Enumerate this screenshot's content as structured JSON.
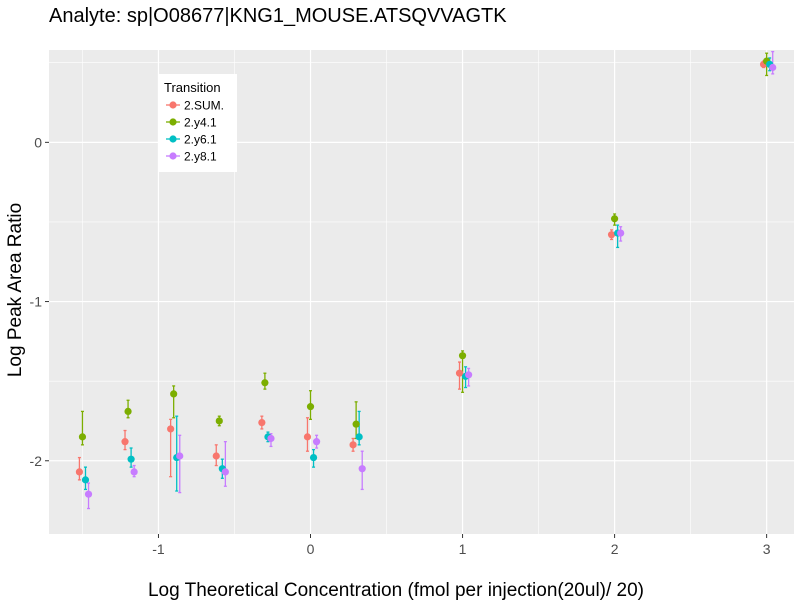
{
  "chart_data": {
    "type": "scatter",
    "title": "Analyte: sp|O08677|KNG1_MOUSE.ATSQVVAGTK",
    "xlabel": "Log Theoretical Concentration (fmol per injection(20ul)/ 20)",
    "ylabel": "Log Peak Area Ratio",
    "xlim": [
      -1.72,
      3.18
    ],
    "ylim": [
      -2.46,
      0.58
    ],
    "x_ticks": [
      -1,
      0,
      1,
      2,
      3
    ],
    "x_tick_labels": [
      "-1",
      "0",
      "1",
      "2",
      "3"
    ],
    "y_ticks": [
      0,
      -1,
      -2
    ],
    "y_tick_labels": [
      "0",
      "-1",
      "-2"
    ],
    "grid": true,
    "legend": {
      "title": "Transition",
      "position": "top-left",
      "entries": [
        "2.SUM.",
        "2.y4.1",
        "2.y6.1",
        "2.y8.1"
      ]
    },
    "series": [
      {
        "name": "2.SUM.",
        "color": "#F8766D",
        "points": [
          {
            "x": -1.52,
            "y": -2.07,
            "lo": -2.12,
            "hi": -1.98
          },
          {
            "x": -1.22,
            "y": -1.88,
            "lo": -1.93,
            "hi": -1.81
          },
          {
            "x": -0.92,
            "y": -1.8,
            "lo": -2.1,
            "hi": -1.74
          },
          {
            "x": -0.62,
            "y": -1.97,
            "lo": -2.03,
            "hi": -1.9
          },
          {
            "x": -0.32,
            "y": -1.76,
            "lo": -1.8,
            "hi": -1.72
          },
          {
            "x": -0.02,
            "y": -1.85,
            "lo": -1.94,
            "hi": -1.73
          },
          {
            "x": 0.28,
            "y": -1.9,
            "lo": -1.94,
            "hi": -1.86
          },
          {
            "x": 0.98,
            "y": -1.45,
            "lo": -1.55,
            "hi": -1.38
          },
          {
            "x": 1.98,
            "y": -0.58,
            "lo": -0.61,
            "hi": -0.55
          },
          {
            "x": 2.98,
            "y": 0.49,
            "lo": 0.47,
            "hi": 0.51
          }
        ]
      },
      {
        "name": "2.y4.1",
        "color": "#7CAE00",
        "points": [
          {
            "x": -1.5,
            "y": -1.85,
            "lo": -1.9,
            "hi": -1.69
          },
          {
            "x": -1.2,
            "y": -1.69,
            "lo": -1.73,
            "hi": -1.62
          },
          {
            "x": -0.9,
            "y": -1.58,
            "lo": -1.73,
            "hi": -1.53
          },
          {
            "x": -0.6,
            "y": -1.75,
            "lo": -1.78,
            "hi": -1.72
          },
          {
            "x": -0.3,
            "y": -1.51,
            "lo": -1.55,
            "hi": -1.45
          },
          {
            "x": 0.0,
            "y": -1.66,
            "lo": -1.74,
            "hi": -1.56
          },
          {
            "x": 0.3,
            "y": -1.77,
            "lo": -1.86,
            "hi": -1.63
          },
          {
            "x": 1.0,
            "y": -1.34,
            "lo": -1.57,
            "hi": -1.31
          },
          {
            "x": 2.0,
            "y": -0.48,
            "lo": -0.52,
            "hi": -0.45
          },
          {
            "x": 3.0,
            "y": 0.51,
            "lo": 0.42,
            "hi": 0.56
          }
        ]
      },
      {
        "name": "2.y6.1",
        "color": "#00BFC4",
        "points": [
          {
            "x": -1.48,
            "y": -2.12,
            "lo": -2.18,
            "hi": -2.04
          },
          {
            "x": -1.18,
            "y": -1.99,
            "lo": -2.04,
            "hi": -1.92
          },
          {
            "x": -0.88,
            "y": -1.98,
            "lo": -2.19,
            "hi": -1.72
          },
          {
            "x": -0.58,
            "y": -2.05,
            "lo": -2.11,
            "hi": -1.99
          },
          {
            "x": -0.28,
            "y": -1.85,
            "lo": -1.88,
            "hi": -1.82
          },
          {
            "x": 0.02,
            "y": -1.98,
            "lo": -2.04,
            "hi": -1.93
          },
          {
            "x": 0.32,
            "y": -1.85,
            "lo": -1.9,
            "hi": -1.69
          },
          {
            "x": 1.02,
            "y": -1.47,
            "lo": -1.54,
            "hi": -1.41
          },
          {
            "x": 2.02,
            "y": -0.57,
            "lo": -0.66,
            "hi": -0.52
          },
          {
            "x": 3.02,
            "y": 0.49,
            "lo": 0.45,
            "hi": 0.53
          }
        ]
      },
      {
        "name": "2.y8.1",
        "color": "#C77CFF",
        "points": [
          {
            "x": -1.46,
            "y": -2.21,
            "lo": -2.3,
            "hi": -2.14
          },
          {
            "x": -1.16,
            "y": -2.07,
            "lo": -2.1,
            "hi": -2.03
          },
          {
            "x": -0.86,
            "y": -1.97,
            "lo": -2.2,
            "hi": -1.84
          },
          {
            "x": -0.56,
            "y": -2.07,
            "lo": -2.16,
            "hi": -1.88
          },
          {
            "x": -0.26,
            "y": -1.86,
            "lo": -1.91,
            "hi": -1.83
          },
          {
            "x": 0.04,
            "y": -1.88,
            "lo": -1.92,
            "hi": -1.84
          },
          {
            "x": 0.34,
            "y": -2.05,
            "lo": -2.18,
            "hi": -1.94
          },
          {
            "x": 1.04,
            "y": -1.46,
            "lo": -1.53,
            "hi": -1.42
          },
          {
            "x": 2.04,
            "y": -0.57,
            "lo": -0.62,
            "hi": -0.53
          },
          {
            "x": 3.04,
            "y": 0.47,
            "lo": 0.43,
            "hi": 0.57
          }
        ]
      }
    ]
  }
}
